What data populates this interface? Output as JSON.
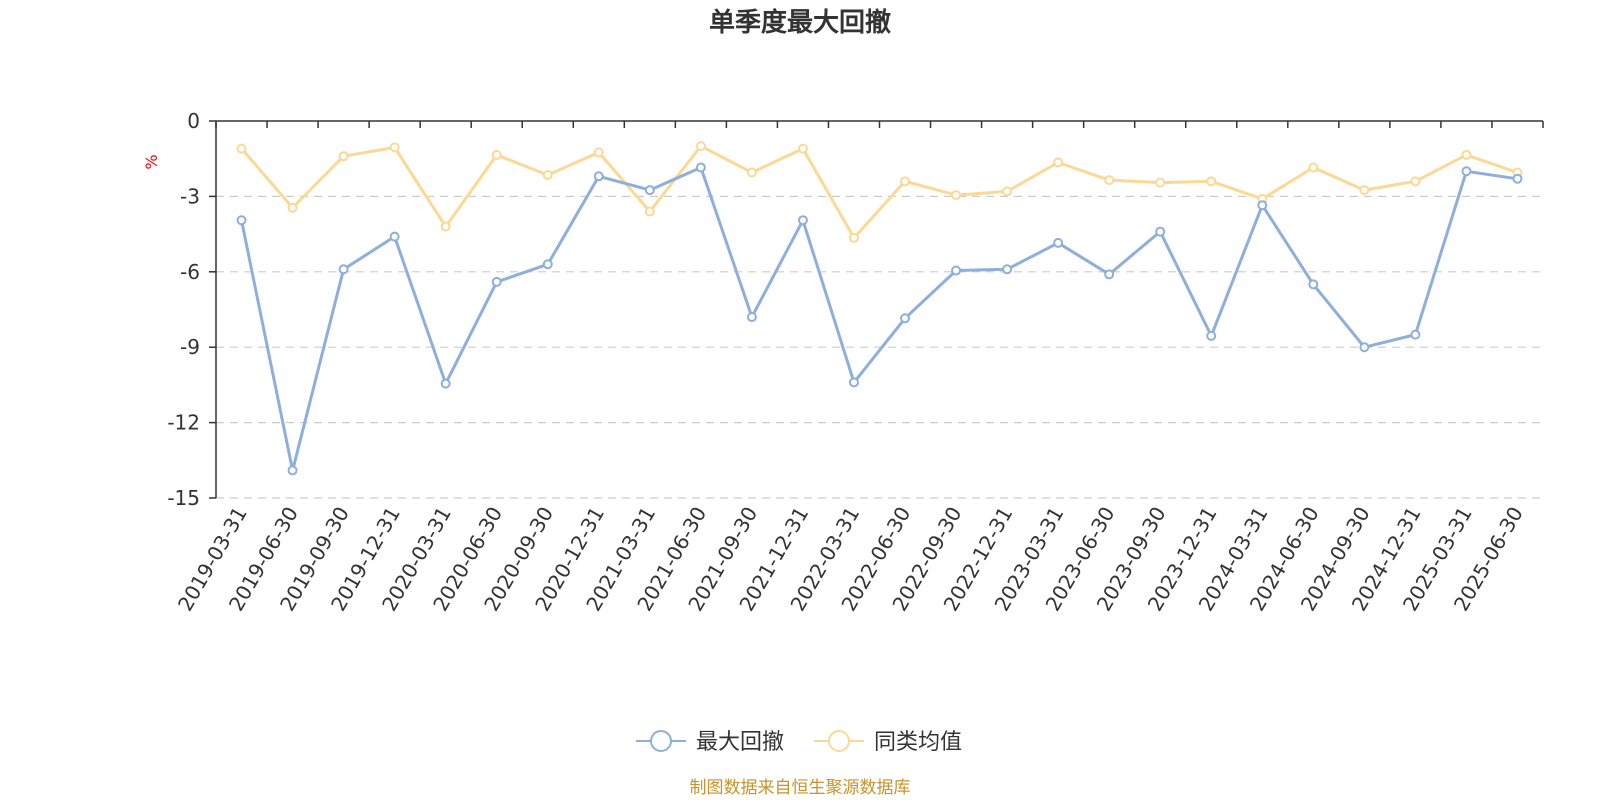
{
  "chart_data": {
    "type": "line",
    "title": "单季度最大回撤",
    "ylabel": "%",
    "xlabel": "",
    "ylim": [
      -15,
      0
    ],
    "yticks": [
      0,
      -3,
      -6,
      -9,
      -12,
      -15
    ],
    "grid": true,
    "legend_position": "bottom",
    "categories": [
      "2019-03-31",
      "2019-06-30",
      "2019-09-30",
      "2019-12-31",
      "2020-03-31",
      "2020-06-30",
      "2020-09-30",
      "2020-12-31",
      "2021-03-31",
      "2021-06-30",
      "2021-09-30",
      "2021-12-31",
      "2022-03-31",
      "2022-06-30",
      "2022-09-30",
      "2022-12-31",
      "2023-03-31",
      "2023-06-30",
      "2023-09-30",
      "2023-12-31",
      "2024-03-31",
      "2024-06-30",
      "2024-09-30",
      "2024-12-31",
      "2025-03-31",
      "2025-06-30"
    ],
    "series": [
      {
        "name": "最大回撤",
        "color": "#8eaedb",
        "values": [
          -3.95,
          -13.9,
          -5.9,
          -4.6,
          -10.45,
          -6.4,
          -5.7,
          -2.2,
          -2.75,
          -1.85,
          -7.8,
          -3.95,
          -10.4,
          -7.85,
          -5.95,
          -5.9,
          -4.85,
          -6.1,
          -4.4,
          -8.55,
          -3.35,
          -6.5,
          -9.0,
          -8.5,
          -2.0,
          -2.3
        ]
      },
      {
        "name": "同类均值",
        "color": "#fbd994",
        "values": [
          -1.1,
          -3.45,
          -1.4,
          -1.05,
          -4.2,
          -1.35,
          -2.15,
          -1.25,
          -3.6,
          -1.0,
          -2.05,
          -1.1,
          -4.65,
          -2.4,
          -2.95,
          -2.8,
          -1.65,
          -2.35,
          -2.45,
          -2.4,
          -3.1,
          -1.85,
          -2.75,
          -2.4,
          -1.35,
          -2.05
        ]
      }
    ]
  },
  "legend": {
    "items": [
      {
        "label": "最大回撤",
        "color": "#8eaedb"
      },
      {
        "label": "同类均值",
        "color": "#fbd994"
      }
    ]
  },
  "footer": {
    "source": "制图数据来自恒生聚源数据库"
  }
}
